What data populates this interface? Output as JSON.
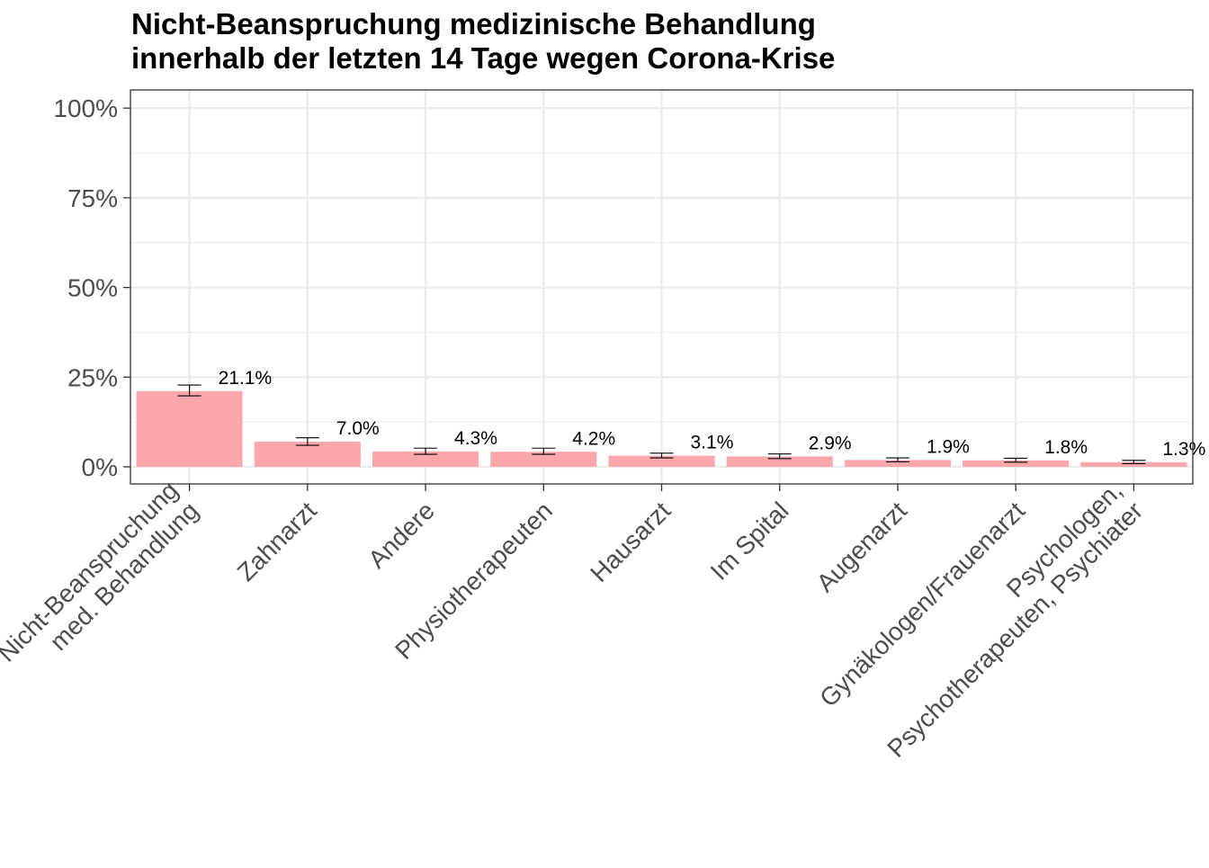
{
  "chart_data": {
    "type": "bar",
    "title_lines": [
      "Nicht-Beanspruchung medizinische Behandlung",
      "innerhalb der letzten 14 Tage wegen Corona-Krise"
    ],
    "xlabel": "",
    "ylabel": "",
    "ylim": [
      -0.045,
      1.05
    ],
    "yticks": [
      0,
      0.25,
      0.5,
      0.75,
      1.0
    ],
    "ytick_labels": [
      "0%",
      "25%",
      "50%",
      "75%",
      "100%"
    ],
    "grid": true,
    "categories": [
      [
        "Nicht-Beanspruchung",
        "med. Behandlung"
      ],
      [
        "Zahnarzt"
      ],
      [
        "Andere"
      ],
      [
        "Physiotherapeuten"
      ],
      [
        "Hausarzt"
      ],
      [
        "Im Spital"
      ],
      [
        "Augenarzt"
      ],
      [
        "Gynäkologen/Frauenarzt"
      ],
      [
        "Psychologen,",
        "Psychotherapeuten, Psychiater"
      ]
    ],
    "values": [
      0.211,
      0.07,
      0.043,
      0.042,
      0.031,
      0.029,
      0.019,
      0.018,
      0.013
    ],
    "error_low": [
      0.198,
      0.06,
      0.035,
      0.035,
      0.025,
      0.023,
      0.014,
      0.013,
      0.009
    ],
    "error_high": [
      0.228,
      0.081,
      0.052,
      0.052,
      0.038,
      0.036,
      0.025,
      0.024,
      0.018
    ],
    "data_labels": [
      "21.1%",
      "7.0%",
      "4.3%",
      "4.2%",
      "3.1%",
      "2.9%",
      "1.9%",
      "1.8%",
      "1.3%"
    ],
    "bar_color": "#fca7ac",
    "error_bar_color": "#000000",
    "grid_color": "#ebebeb",
    "panel_border_color": "#333333",
    "tick_label_color": "#4d4d4d"
  }
}
